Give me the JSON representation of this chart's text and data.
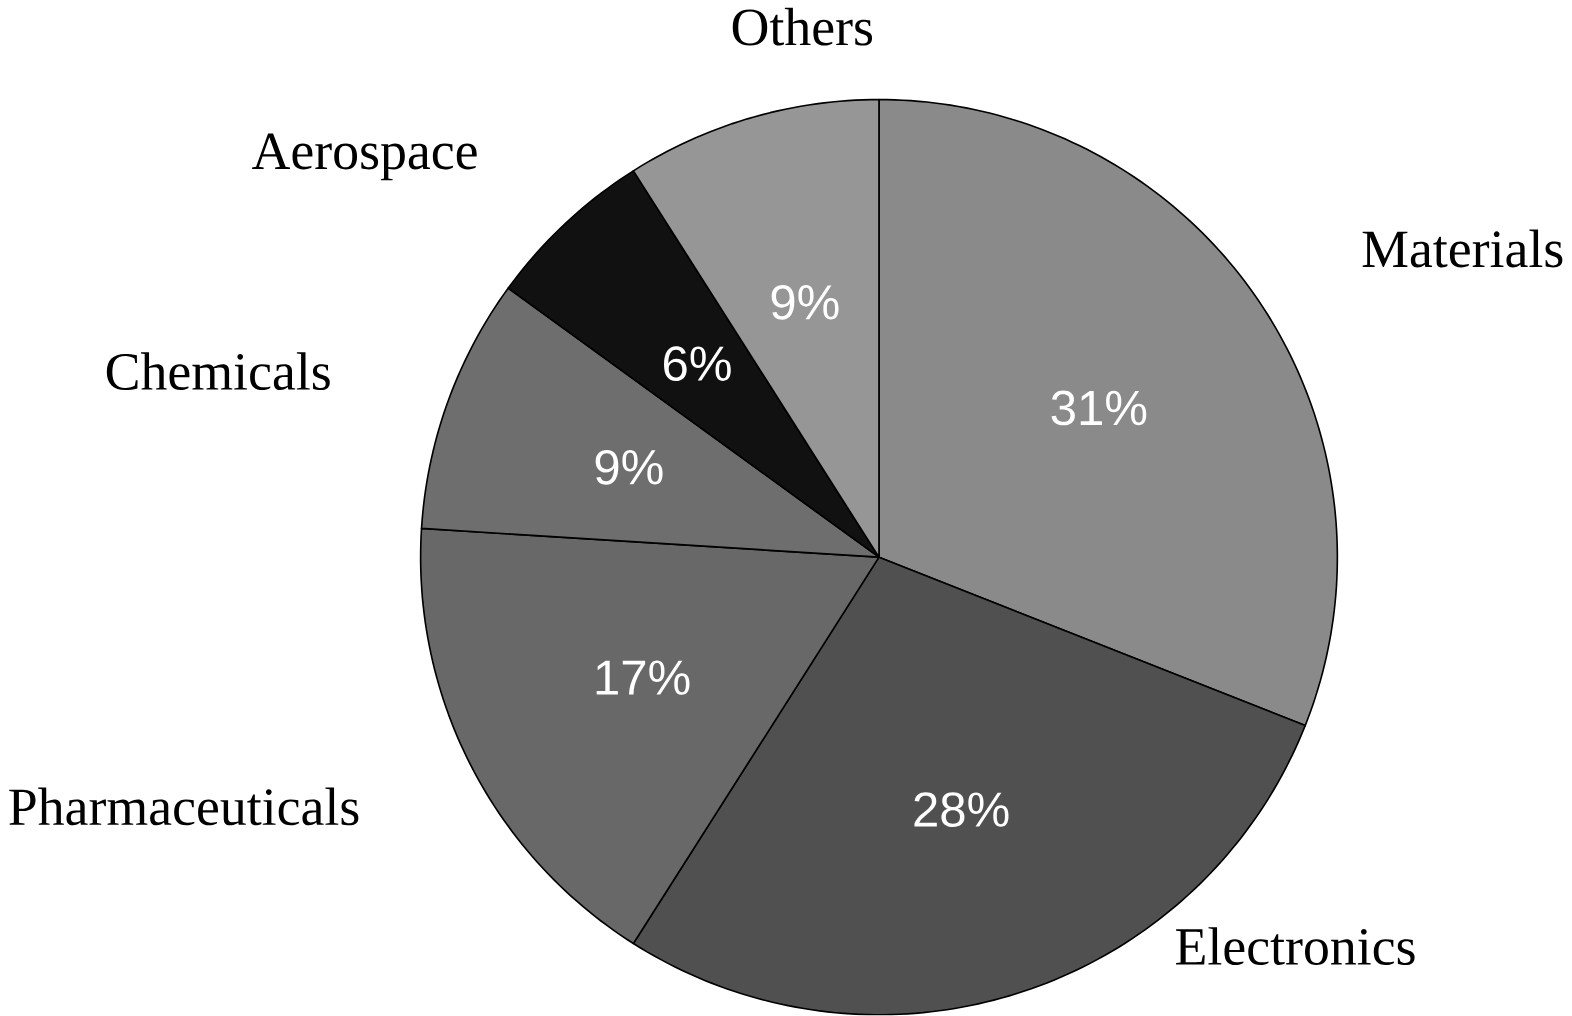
{
  "chart_data": {
    "type": "pie",
    "categories": [
      "Materials",
      "Electronics",
      "Pharmaceuticals",
      "Chemicals",
      "Aerospace",
      "Others"
    ],
    "values": [
      31,
      28,
      17,
      9,
      6,
      9
    ],
    "colors": [
      "#8a8a8a",
      "#505050",
      "#686868",
      "#6e6e6e",
      "#111111",
      "#969696"
    ],
    "value_labels": [
      "31%",
      "28%",
      "17%",
      "9%",
      "6%",
      "9%"
    ]
  }
}
